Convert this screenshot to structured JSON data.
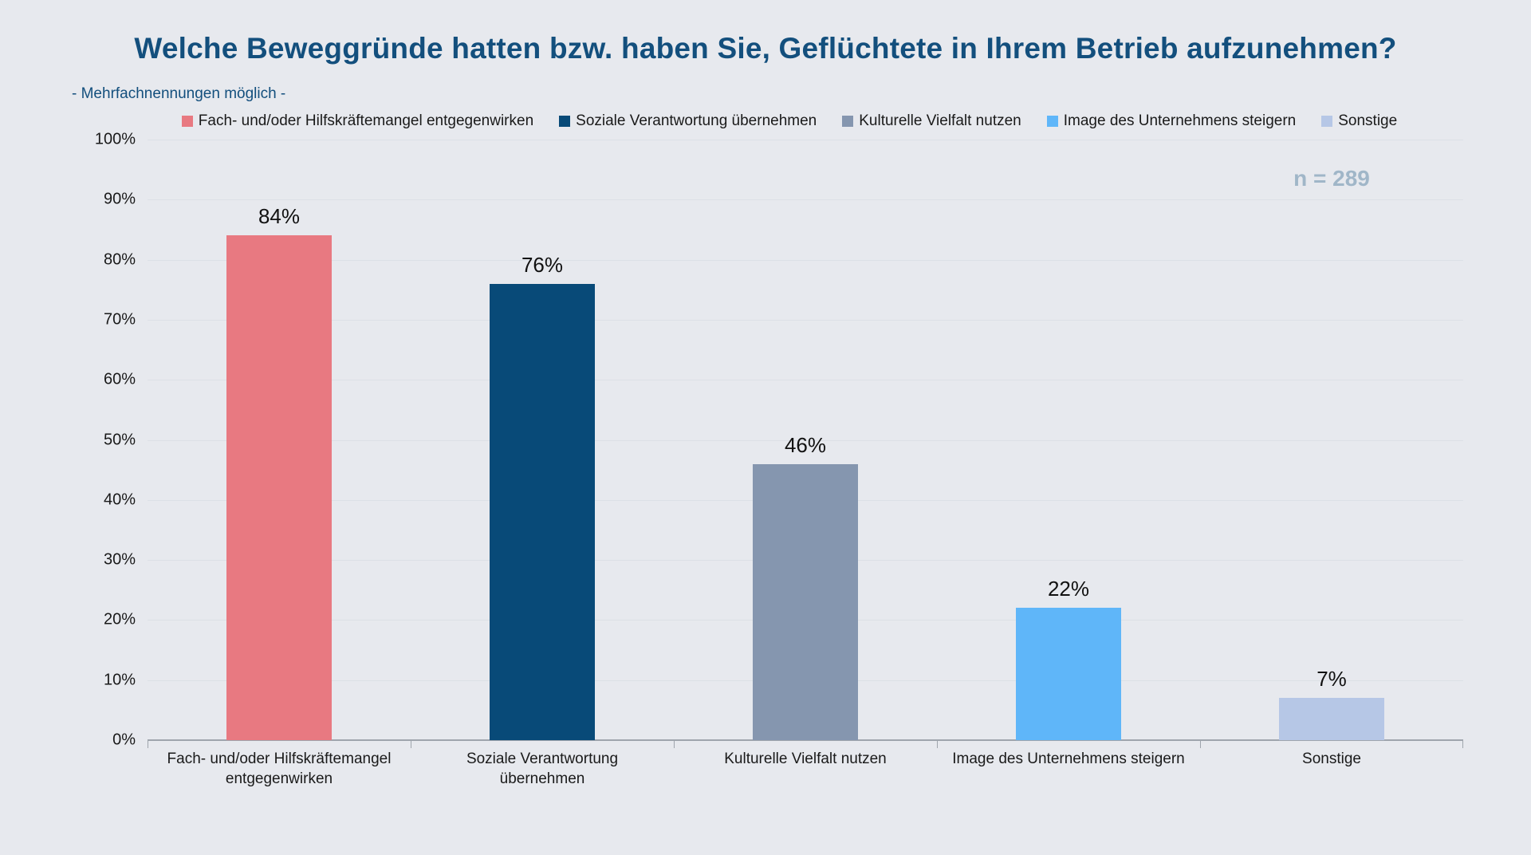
{
  "page": {
    "title": "Welche Beweggründe hatten bzw. haben Sie, Geflüchtete in Ihrem Betrieb aufzunehmen?",
    "subtitle": "- Mehrfachnennungen möglich -",
    "sample_size_label": "n = 289"
  },
  "chart_data": {
    "type": "bar",
    "title": "Welche Beweggründe hatten bzw. haben Sie, Geflüchtete in Ihrem Betrieb aufzunehmen?",
    "subtitle": "- Mehrfachnennungen möglich -",
    "annotation": "n = 289",
    "categories": [
      "Fach- und/oder Hilfskräftemangel entgegenwirken",
      "Soziale Verantwortung übernehmen",
      "Kulturelle Vielfalt nutzen",
      "Image des Unternehmens steigern",
      "Sonstige"
    ],
    "values": [
      84,
      76,
      46,
      22,
      7
    ],
    "value_labels": [
      "84%",
      "76%",
      "46%",
      "22%",
      "7%"
    ],
    "series_colors": [
      "#E87981",
      "#084A78",
      "#8596AF",
      "#5FB6F9",
      "#B6C7E6"
    ],
    "legend": [
      "Fach- und/oder Hilfskräftemangel entgegenwirken",
      "Soziale Verantwortung übernehmen",
      "Kulturelle Vielfalt nutzen",
      "Image des Unternehmens steigern",
      "Sonstige"
    ],
    "legend_position": "top",
    "xlabel": "",
    "ylabel": "",
    "ylim": [
      0,
      100
    ],
    "ytick_step": 10,
    "ytick_labels": [
      "0%",
      "10%",
      "20%",
      "30%",
      "40%",
      "50%",
      "60%",
      "70%",
      "80%",
      "90%",
      "100%"
    ],
    "grid": true
  },
  "colors": {
    "background": "#E7E9EE",
    "title": "#134F7D",
    "annotation": "#A0B6C8",
    "gridline": "#DCE0E6",
    "axis": "#9FA5AD",
    "text": "#1A1A1A"
  }
}
